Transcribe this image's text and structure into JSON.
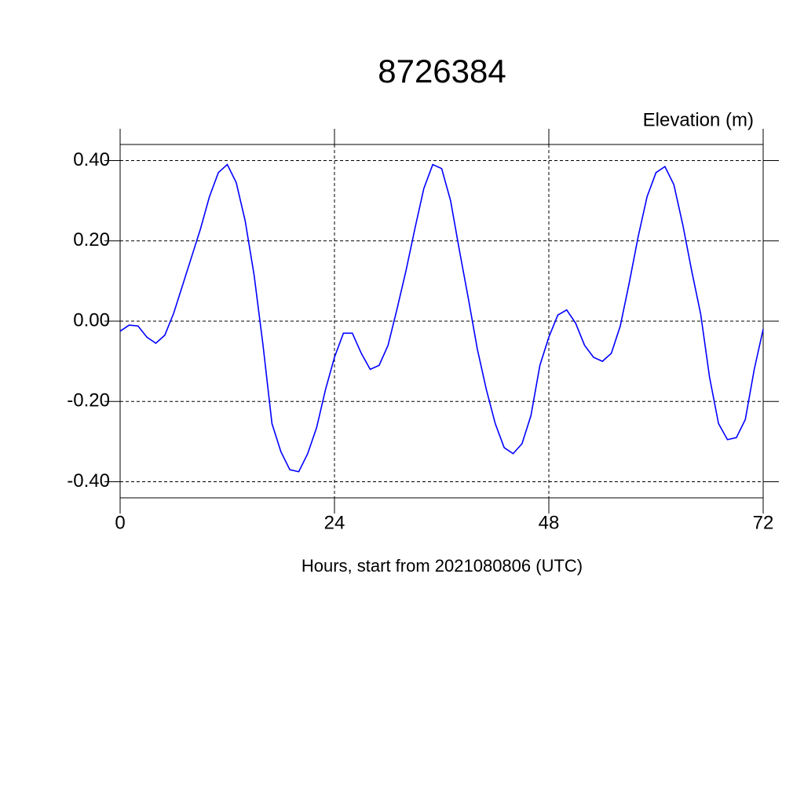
{
  "chart_data": {
    "type": "line",
    "title": "8726384",
    "subtitle": "Elevation (m)",
    "x_label": "Hours, start from 2021080806 (UTC)",
    "x": [
      0,
      1,
      2,
      3,
      4,
      5,
      6,
      7,
      8,
      9,
      10,
      11,
      12,
      13,
      14,
      15,
      16,
      17,
      18,
      19,
      20,
      21,
      22,
      23,
      24,
      25,
      26,
      27,
      28,
      29,
      30,
      31,
      32,
      33,
      34,
      35,
      36,
      37,
      38,
      39,
      40,
      41,
      42,
      43,
      44,
      45,
      46,
      47,
      48,
      49,
      50,
      51,
      52,
      53,
      54,
      55,
      56,
      57,
      58,
      59,
      60,
      61,
      62,
      63,
      64,
      65,
      66,
      67,
      68,
      69,
      70,
      71,
      72
    ],
    "series": [
      {
        "name": "Elevation",
        "color": "#0000ff",
        "values": [
          -0.025,
          -0.01,
          -0.012,
          -0.04,
          -0.055,
          -0.035,
          0.02,
          0.09,
          0.16,
          0.23,
          0.31,
          0.37,
          0.39,
          0.345,
          0.25,
          0.115,
          -0.06,
          -0.255,
          -0.325,
          -0.37,
          -0.375,
          -0.33,
          -0.265,
          -0.17,
          -0.09,
          -0.03,
          -0.03,
          -0.08,
          -0.12,
          -0.11,
          -0.06,
          0.03,
          0.125,
          0.23,
          0.33,
          0.39,
          0.38,
          0.3,
          0.175,
          0.055,
          -0.07,
          -0.17,
          -0.255,
          -0.315,
          -0.33,
          -0.305,
          -0.235,
          -0.11,
          -0.04,
          0.015,
          0.028,
          -0.005,
          -0.06,
          -0.09,
          -0.1,
          -0.08,
          -0.012,
          0.095,
          0.21,
          0.31,
          0.37,
          0.385,
          0.34,
          0.24,
          0.125,
          0.018,
          -0.14,
          -0.255,
          -0.295,
          -0.29,
          -0.245,
          -0.12,
          -0.02
        ]
      }
    ],
    "xlim": [
      0,
      72
    ],
    "xticks": [
      0,
      24,
      48,
      72
    ],
    "ylim": [
      -0.44,
      0.44
    ],
    "yticks": [
      {
        "value": 0.4,
        "label": "0.40"
      },
      {
        "value": 0.2,
        "label": "0.20"
      },
      {
        "value": 0,
        "label": "0.00"
      },
      {
        "value": -0.2,
        "label": "-0.20"
      },
      {
        "value": -0.4,
        "label": "-0.40"
      }
    ],
    "grid": true
  }
}
